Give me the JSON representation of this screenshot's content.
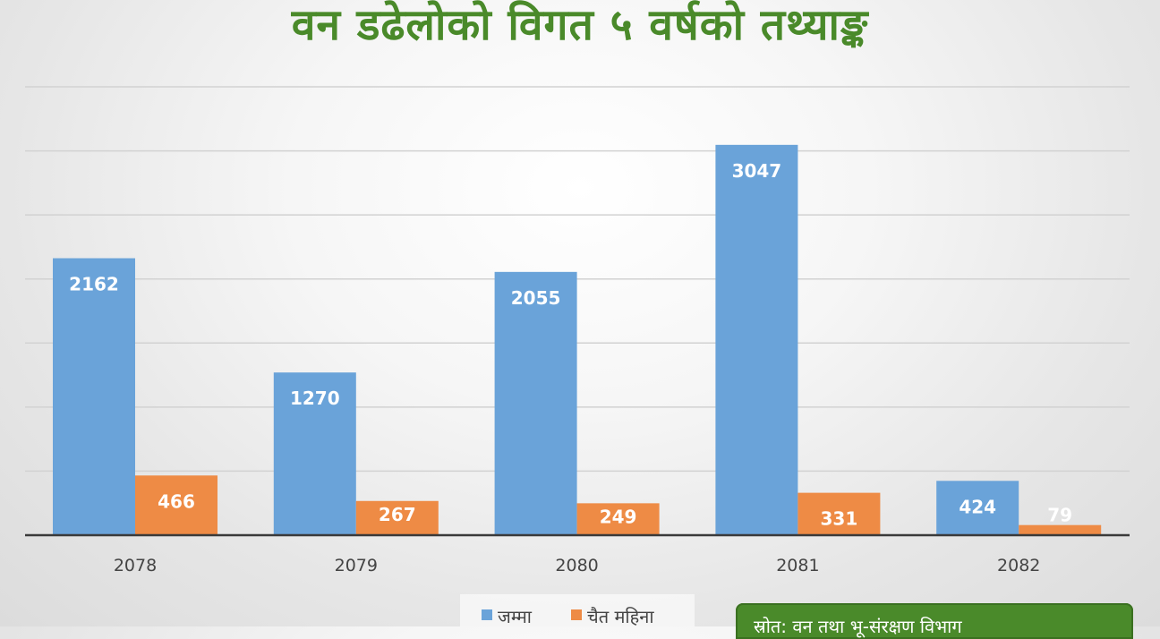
{
  "chart_data": {
    "type": "bar",
    "title": "वन डढेलोको विगत ५ वर्षको तथ्याङ्क",
    "categories": [
      "2078",
      "2079",
      "2080",
      "2081",
      "2082"
    ],
    "series": [
      {
        "name": "जम्मा",
        "values": [
          2162,
          1270,
          2055,
          3047,
          424
        ],
        "color": "#6aa3d9",
        "label_color": "#ffffff"
      },
      {
        "name": "चैत महिना",
        "values": [
          466,
          267,
          249,
          331,
          79
        ],
        "color": "#ee8b45",
        "label_color": "#ffffff"
      }
    ],
    "ylim": [
      0,
      3500
    ],
    "y_gridlines": [
      0,
      500,
      1000,
      1500,
      2000,
      2500,
      3000,
      3500
    ],
    "grid": true,
    "y_tick_labels_shown": false,
    "legend_position": "bottom-center"
  },
  "source_note": {
    "text": "स्रोत: वन तथा भू-संरक्षण विभाग",
    "color": "#4a8a2a"
  }
}
